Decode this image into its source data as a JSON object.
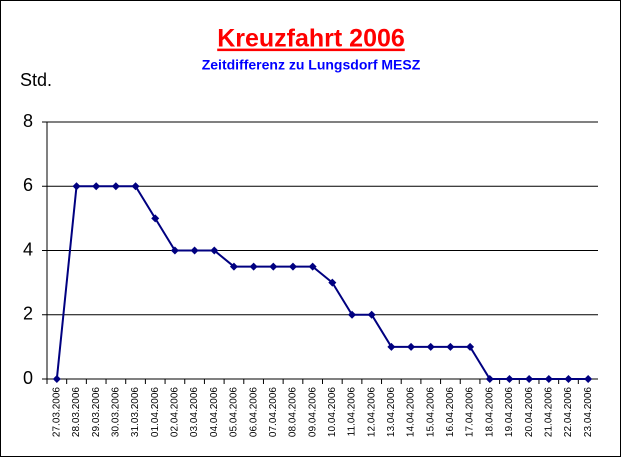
{
  "chart_data": {
    "type": "line",
    "title": "Kreuzfahrt 2006",
    "subtitle": "Zeitdifferenz zu Lungsdorf MESZ",
    "y_label": "Std.",
    "categories": [
      "27.03.2006",
      "28.03.2006",
      "29.03.2006",
      "30.03.2006",
      "31.03.2006",
      "01.04.2006",
      "02.04.2006",
      "03.04.2006",
      "04.04.2006",
      "05.04.2006",
      "06.04.2006",
      "07.04.2006",
      "08.04.2006",
      "09.04.2006",
      "10.04.2006",
      "11.04.2006",
      "12.04.2006",
      "13.04.2006",
      "14.04.2006",
      "15.04.2006",
      "16.04.2006",
      "17.04.2006",
      "18.04.2006",
      "19.04.2006",
      "20.04.2006",
      "21.04.2006",
      "22.04.2006",
      "23.04.2006"
    ],
    "values": [
      0,
      6,
      6,
      6,
      6,
      5,
      4,
      4,
      4,
      3.5,
      3.5,
      3.5,
      3.5,
      3.5,
      3,
      2,
      2,
      1,
      1,
      1,
      1,
      1,
      0,
      0,
      0,
      0,
      0,
      0
    ],
    "color": "#000080",
    "ylim": [
      0,
      8
    ],
    "yticks": [
      0,
      2,
      4,
      6,
      8
    ],
    "grid": true
  }
}
